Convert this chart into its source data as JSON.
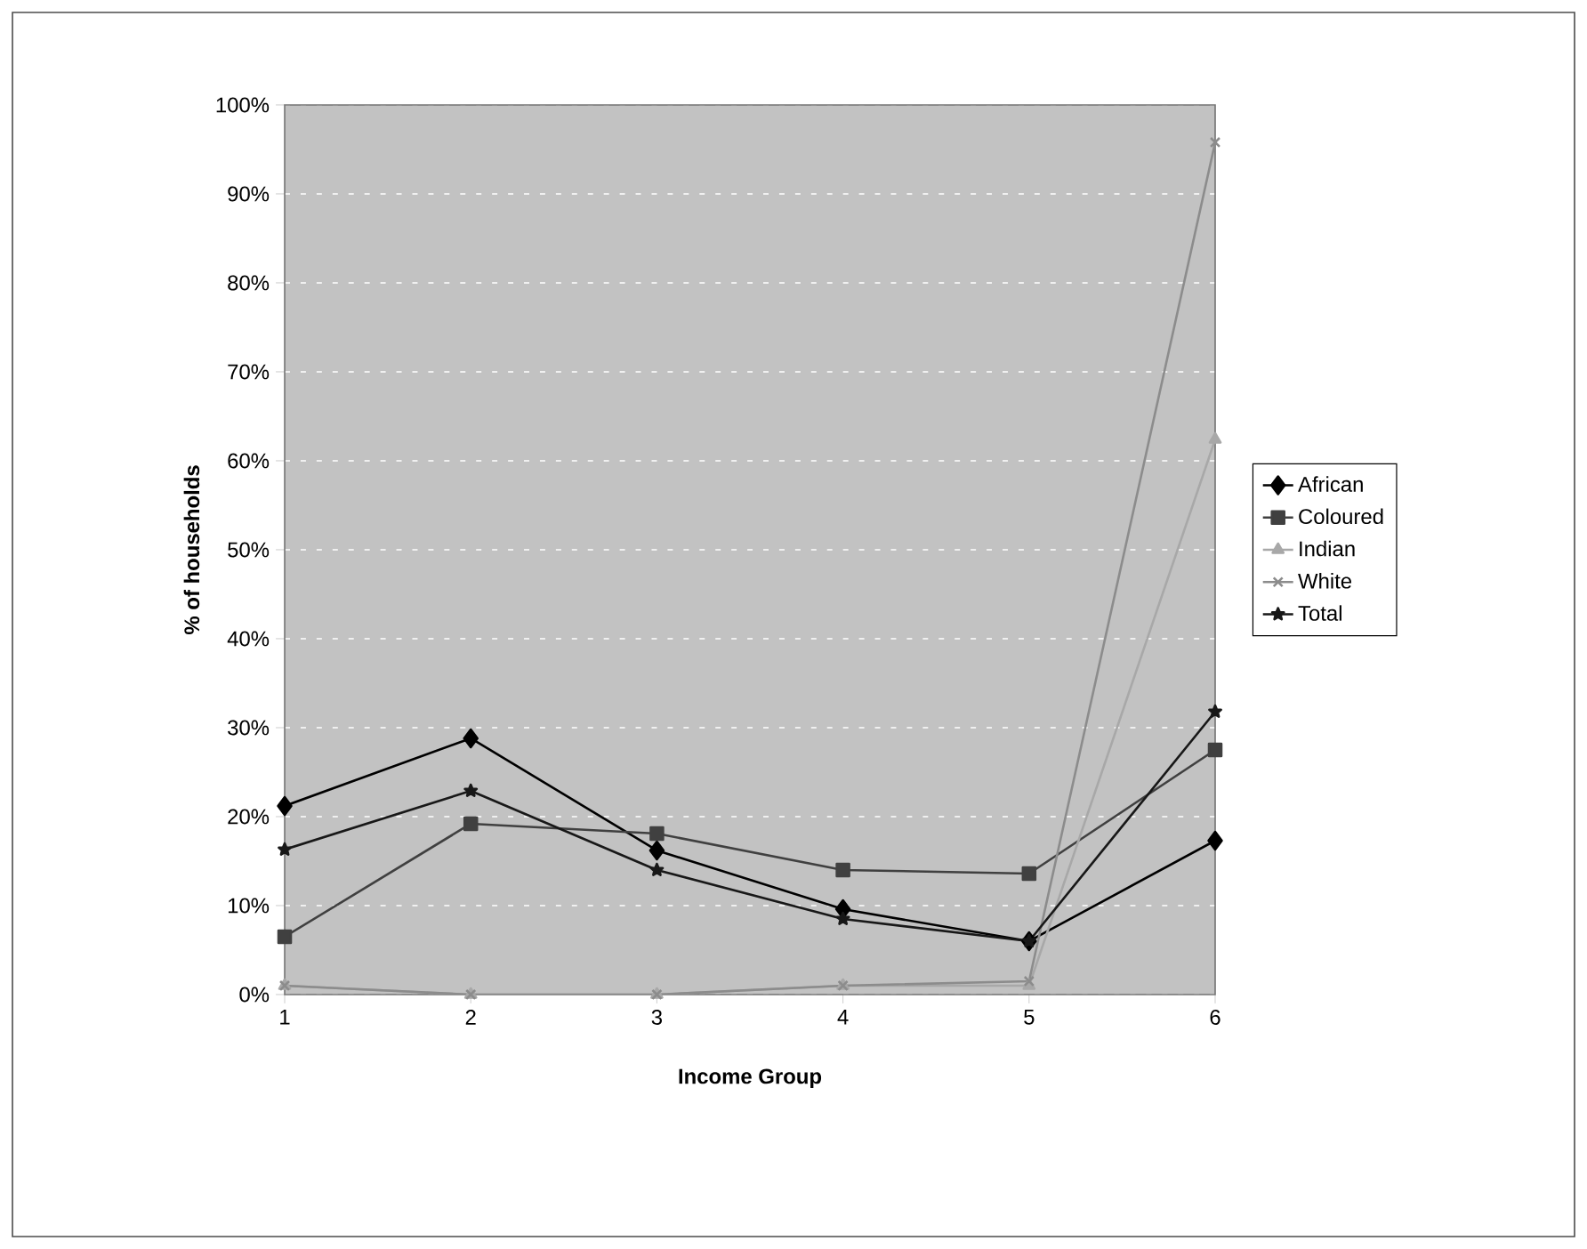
{
  "chart_data": {
    "type": "line",
    "xlabel": "Income Group",
    "ylabel": "% of households",
    "categories": [
      "1",
      "2",
      "3",
      "4",
      "5",
      "6"
    ],
    "series": [
      {
        "name": "African",
        "color": "#000000",
        "marker": "diamond",
        "values": [
          21.2,
          28.8,
          16.2,
          9.6,
          6.0,
          17.3
        ]
      },
      {
        "name": "Coloured",
        "color": "#404040",
        "marker": "square",
        "values": [
          6.5,
          19.2,
          18.1,
          14.0,
          13.6,
          27.5
        ]
      },
      {
        "name": "Indian",
        "color": "#a8a8a8",
        "marker": "triangle",
        "values": [
          1.0,
          0.0,
          0.0,
          1.0,
          1.0,
          62.4
        ]
      },
      {
        "name": "White",
        "color": "#8c8c8c",
        "marker": "cross",
        "values": [
          1.0,
          0.0,
          0.0,
          1.0,
          1.5,
          95.8
        ]
      },
      {
        "name": "Total",
        "color": "#181818",
        "marker": "star",
        "values": [
          16.3,
          22.9,
          14.0,
          8.5,
          6.0,
          31.8
        ]
      }
    ],
    "ylim": [
      0,
      100
    ],
    "yticks": [
      {
        "value": 0,
        "label": "0%"
      },
      {
        "value": 10,
        "label": "10%"
      },
      {
        "value": 20,
        "label": "20%"
      },
      {
        "value": 30,
        "label": "30%"
      },
      {
        "value": 40,
        "label": "40%"
      },
      {
        "value": 50,
        "label": "50%"
      },
      {
        "value": 60,
        "label": "60%"
      },
      {
        "value": 70,
        "label": "70%"
      },
      {
        "value": 80,
        "label": "80%"
      },
      {
        "value": 90,
        "label": "90%"
      },
      {
        "value": 100,
        "label": "100%"
      }
    ],
    "grid": "y",
    "legend": "right",
    "line_style": "solid"
  }
}
